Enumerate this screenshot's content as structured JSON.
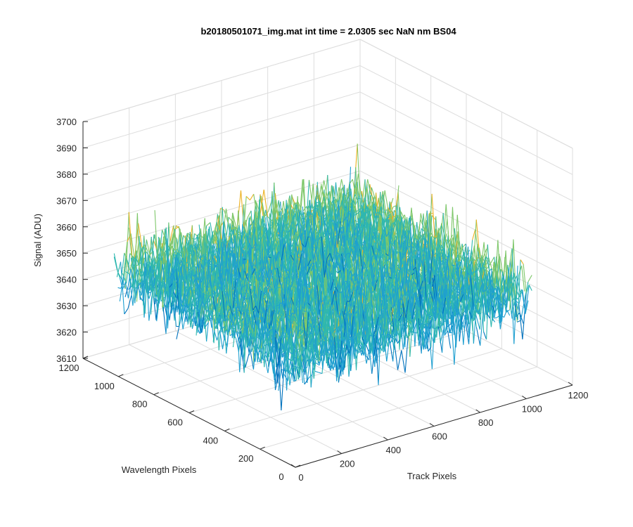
{
  "chart_data": {
    "type": "surface",
    "title": "b20180501071_img.mat int time = 2.0305 sec  NaN nm BS04",
    "xlabel": "Track Pixels",
    "ylabel": "Wavelength Pixels",
    "zlabel": "Signal (ADU)",
    "xlim": [
      0,
      1200
    ],
    "ylim": [
      0,
      1200
    ],
    "zlim": [
      3610,
      3700
    ],
    "x_ticks": [
      "0",
      "200",
      "400",
      "600",
      "800",
      "1000",
      "1200"
    ],
    "y_ticks": [
      "0",
      "200",
      "400",
      "600",
      "800",
      "1000",
      "1200"
    ],
    "z_ticks": [
      "3610",
      "3620",
      "3630",
      "3640",
      "3650",
      "3660",
      "3670",
      "3680",
      "3690",
      "3700"
    ],
    "x_tick_values": [
      0,
      200,
      400,
      600,
      800,
      1000,
      1200
    ],
    "y_tick_values": [
      0,
      200,
      400,
      600,
      800,
      1000,
      1200
    ],
    "z_tick_values": [
      3610,
      3620,
      3630,
      3640,
      3650,
      3660,
      3670,
      3680,
      3690,
      3700
    ],
    "data_extent": {
      "x": [
        0,
        1024
      ],
      "y": [
        0,
        1024
      ]
    },
    "signal_mean": 3650,
    "signal_std": 7,
    "signal_range_visible": [
      3612,
      3695
    ],
    "grid": true,
    "colormap": [
      "#0072BD",
      "#1E9FD0",
      "#2EB7B0",
      "#7EC76A",
      "#EDB120"
    ],
    "box_color": "#262626",
    "grid_color": "#dddddd"
  }
}
